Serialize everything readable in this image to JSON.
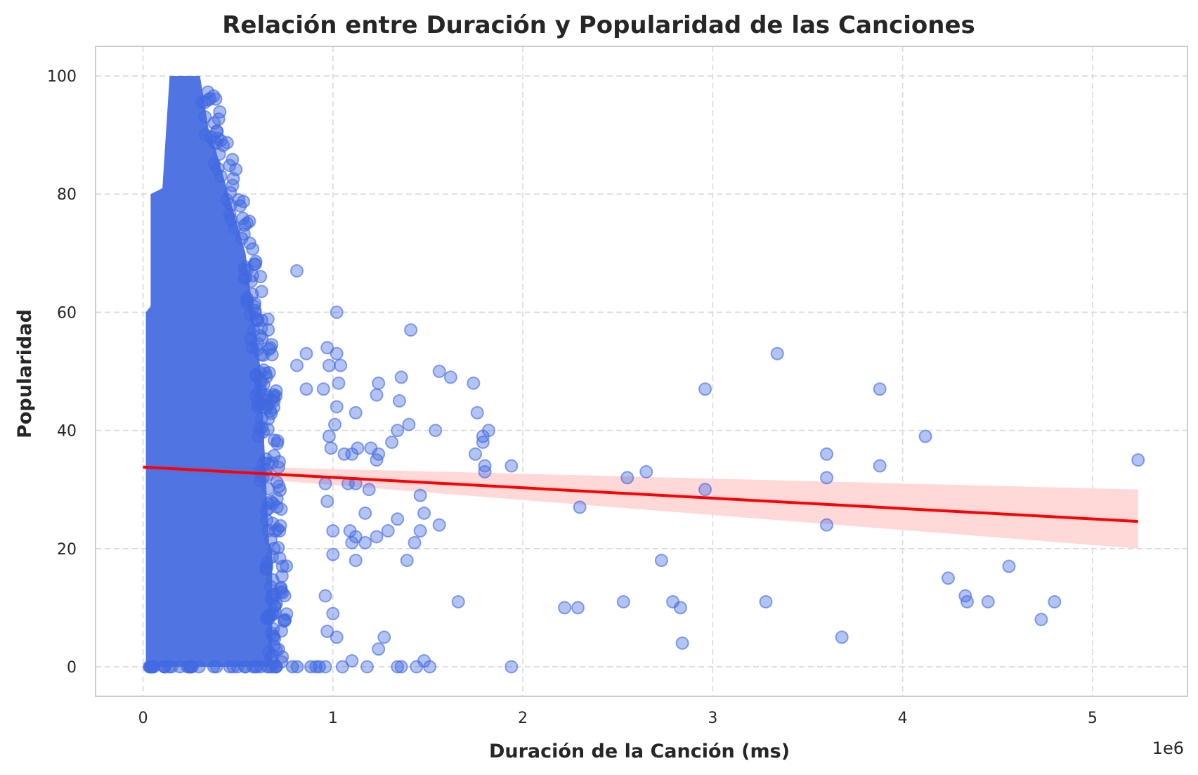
{
  "chart_data": {
    "type": "scatter",
    "title": "Relación entre Duración y Popularidad de las Canciones",
    "xlabel": "Duración de la Canción (ms)",
    "ylabel": "Popularidad",
    "x_offset_label": "1e6",
    "xlim": [
      -250000,
      5500000
    ],
    "ylim": [
      -5,
      105
    ],
    "x_ticks": [
      0,
      1000000,
      2000000,
      3000000,
      4000000,
      5000000
    ],
    "x_tick_labels": [
      "0",
      "1",
      "2",
      "3",
      "4",
      "5"
    ],
    "y_ticks": [
      0,
      20,
      40,
      60,
      80,
      100
    ],
    "y_tick_labels": [
      "0",
      "20",
      "40",
      "60",
      "80",
      "100"
    ],
    "grid": true,
    "colors": {
      "points": "#4169e1",
      "regression_line": "#ff0000",
      "confidence_band": "#ffd6d6"
    },
    "dense_cluster": {
      "description_x_range": [
        10000,
        700000
      ],
      "y_range": [
        0,
        100
      ],
      "peak_x": 200000
    },
    "points": [
      {
        "x": 810000,
        "y": 67
      },
      {
        "x": 1020000,
        "y": 60
      },
      {
        "x": 1410000,
        "y": 57
      },
      {
        "x": 970000,
        "y": 54
      },
      {
        "x": 1020000,
        "y": 53
      },
      {
        "x": 860000,
        "y": 53
      },
      {
        "x": 980000,
        "y": 51
      },
      {
        "x": 1040000,
        "y": 51
      },
      {
        "x": 810000,
        "y": 51
      },
      {
        "x": 1560000,
        "y": 50
      },
      {
        "x": 1620000,
        "y": 49
      },
      {
        "x": 1360000,
        "y": 49
      },
      {
        "x": 1240000,
        "y": 48
      },
      {
        "x": 1030000,
        "y": 48
      },
      {
        "x": 1740000,
        "y": 48
      },
      {
        "x": 950000,
        "y": 47
      },
      {
        "x": 860000,
        "y": 47
      },
      {
        "x": 1230000,
        "y": 46
      },
      {
        "x": 1350000,
        "y": 45
      },
      {
        "x": 1020000,
        "y": 44
      },
      {
        "x": 1120000,
        "y": 43
      },
      {
        "x": 1760000,
        "y": 43
      },
      {
        "x": 1400000,
        "y": 41
      },
      {
        "x": 1010000,
        "y": 41
      },
      {
        "x": 1340000,
        "y": 40
      },
      {
        "x": 1540000,
        "y": 40
      },
      {
        "x": 1820000,
        "y": 40
      },
      {
        "x": 1790000,
        "y": 39
      },
      {
        "x": 980000,
        "y": 39
      },
      {
        "x": 1310000,
        "y": 38
      },
      {
        "x": 1790000,
        "y": 38
      },
      {
        "x": 1130000,
        "y": 37
      },
      {
        "x": 1200000,
        "y": 37
      },
      {
        "x": 990000,
        "y": 37
      },
      {
        "x": 1100000,
        "y": 36
      },
      {
        "x": 1060000,
        "y": 36
      },
      {
        "x": 1750000,
        "y": 36
      },
      {
        "x": 1240000,
        "y": 36
      },
      {
        "x": 1230000,
        "y": 35
      },
      {
        "x": 1940000,
        "y": 34
      },
      {
        "x": 1800000,
        "y": 34
      },
      {
        "x": 1800000,
        "y": 33
      },
      {
        "x": 1120000,
        "y": 31
      },
      {
        "x": 1080000,
        "y": 31
      },
      {
        "x": 960000,
        "y": 31
      },
      {
        "x": 1190000,
        "y": 30
      },
      {
        "x": 1460000,
        "y": 29
      },
      {
        "x": 970000,
        "y": 28
      },
      {
        "x": 1170000,
        "y": 26
      },
      {
        "x": 1480000,
        "y": 26
      },
      {
        "x": 1340000,
        "y": 25
      },
      {
        "x": 1560000,
        "y": 24
      },
      {
        "x": 1460000,
        "y": 23
      },
      {
        "x": 1290000,
        "y": 23
      },
      {
        "x": 1000000,
        "y": 23
      },
      {
        "x": 1090000,
        "y": 23
      },
      {
        "x": 1120000,
        "y": 22
      },
      {
        "x": 1230000,
        "y": 22
      },
      {
        "x": 1430000,
        "y": 21
      },
      {
        "x": 1100000,
        "y": 21
      },
      {
        "x": 1170000,
        "y": 21
      },
      {
        "x": 1000000,
        "y": 19
      },
      {
        "x": 1120000,
        "y": 18
      },
      {
        "x": 1390000,
        "y": 18
      },
      {
        "x": 960000,
        "y": 12
      },
      {
        "x": 1660000,
        "y": 11
      },
      {
        "x": 1000000,
        "y": 9
      },
      {
        "x": 970000,
        "y": 6
      },
      {
        "x": 1020000,
        "y": 5
      },
      {
        "x": 1270000,
        "y": 5
      },
      {
        "x": 1240000,
        "y": 3
      },
      {
        "x": 1480000,
        "y": 1
      },
      {
        "x": 1100000,
        "y": 1
      },
      {
        "x": 1340000,
        "y": 0
      },
      {
        "x": 1360000,
        "y": 0
      },
      {
        "x": 1510000,
        "y": 0
      },
      {
        "x": 1940000,
        "y": 0
      },
      {
        "x": 1180000,
        "y": 0
      },
      {
        "x": 1050000,
        "y": 0
      },
      {
        "x": 960000,
        "y": 0
      },
      {
        "x": 1440000,
        "y": 0
      },
      {
        "x": 2960000,
        "y": 47
      },
      {
        "x": 3340000,
        "y": 53
      },
      {
        "x": 3880000,
        "y": 47
      },
      {
        "x": 4120000,
        "y": 39
      },
      {
        "x": 3600000,
        "y": 36
      },
      {
        "x": 3880000,
        "y": 34
      },
      {
        "x": 5240000,
        "y": 35
      },
      {
        "x": 2650000,
        "y": 33
      },
      {
        "x": 2550000,
        "y": 32
      },
      {
        "x": 3600000,
        "y": 32
      },
      {
        "x": 2960000,
        "y": 30
      },
      {
        "x": 2300000,
        "y": 27
      },
      {
        "x": 3600000,
        "y": 24
      },
      {
        "x": 2730000,
        "y": 18
      },
      {
        "x": 4560000,
        "y": 17
      },
      {
        "x": 4240000,
        "y": 15
      },
      {
        "x": 4330000,
        "y": 12
      },
      {
        "x": 4340000,
        "y": 11
      },
      {
        "x": 4450000,
        "y": 11
      },
      {
        "x": 4800000,
        "y": 11
      },
      {
        "x": 2530000,
        "y": 11
      },
      {
        "x": 2790000,
        "y": 11
      },
      {
        "x": 3280000,
        "y": 11
      },
      {
        "x": 2220000,
        "y": 10
      },
      {
        "x": 2290000,
        "y": 10
      },
      {
        "x": 2830000,
        "y": 10
      },
      {
        "x": 4730000,
        "y": 8
      },
      {
        "x": 3680000,
        "y": 5
      },
      {
        "x": 2840000,
        "y": 4
      }
    ],
    "regression": {
      "x": [
        0,
        5240000
      ],
      "y": [
        33.8,
        24.6
      ],
      "ci_lower": [
        33.3,
        20.0
      ],
      "ci_upper": [
        34.3,
        30.0
      ]
    }
  }
}
